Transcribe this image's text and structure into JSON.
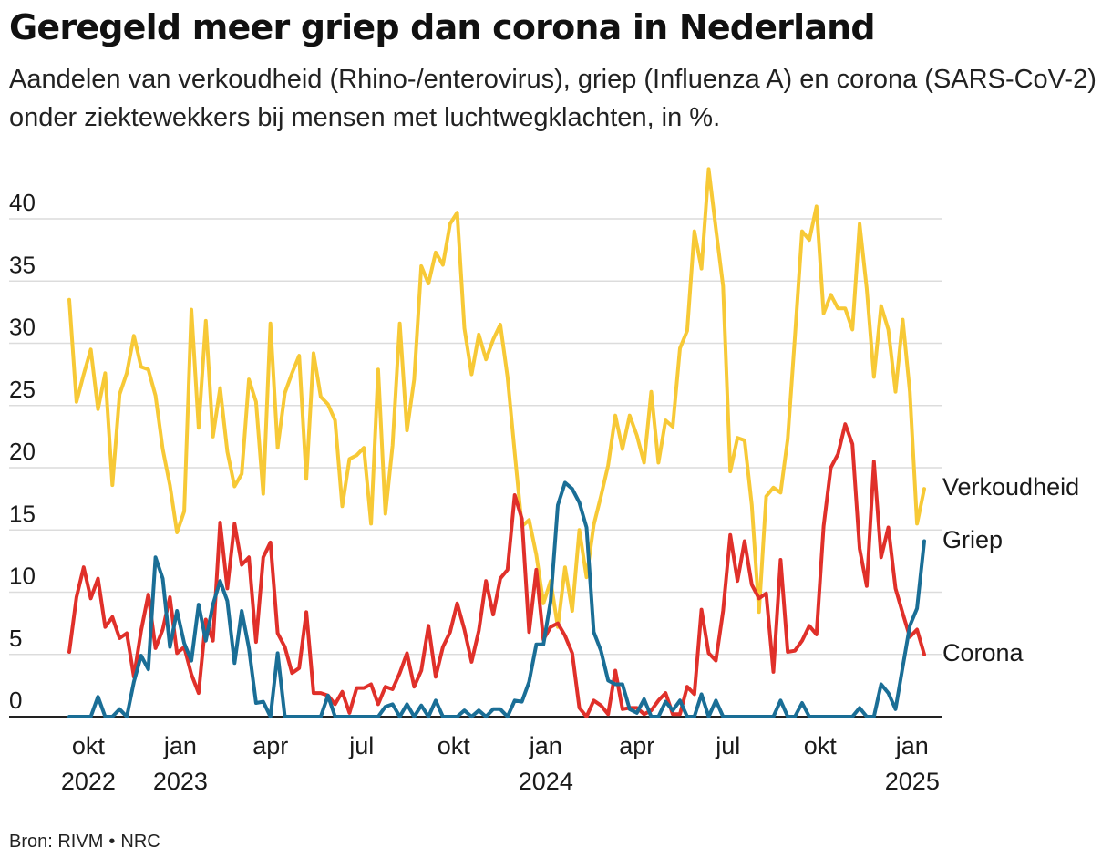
{
  "title": "Geregeld meer griep dan corona in Nederland",
  "subtitle": "Aandelen van verkoudheid (Rhino-/enterovirus), griep (Influenza A) en corona (SARS-CoV-2) onder ziektewekkers bij mensen met luchtwegklachten, in %.",
  "source": {
    "label": "Bron: RIVM",
    "brand": "NRC"
  },
  "chart_data": {
    "type": "line",
    "x_unit": "week",
    "x_start": "2022-09-12",
    "x_end": "2025-01-13",
    "ylim": [
      0,
      44
    ],
    "yticks": [
      0,
      5,
      10,
      15,
      20,
      25,
      30,
      35,
      40
    ],
    "grid": true,
    "legend": "direct labels at line ends (right)",
    "xticks": [
      {
        "date": "2022-10-01",
        "month": "okt",
        "year": "2022"
      },
      {
        "date": "2023-01-01",
        "month": "jan",
        "year": "2023"
      },
      {
        "date": "2023-04-01",
        "month": "apr",
        "year": ""
      },
      {
        "date": "2023-07-01",
        "month": "jul",
        "year": ""
      },
      {
        "date": "2023-10-01",
        "month": "okt",
        "year": ""
      },
      {
        "date": "2024-01-01",
        "month": "jan",
        "year": "2024"
      },
      {
        "date": "2024-04-01",
        "month": "apr",
        "year": ""
      },
      {
        "date": "2024-07-01",
        "month": "jul",
        "year": ""
      },
      {
        "date": "2024-10-01",
        "month": "okt",
        "year": ""
      },
      {
        "date": "2025-01-01",
        "month": "jan",
        "year": "2025"
      }
    ],
    "series": [
      {
        "name": "Verkoudheid",
        "color": "#f7c936",
        "values": [
          33.5,
          25.3,
          27.5,
          29.5,
          24.7,
          27.6,
          18.6,
          25.9,
          27.6,
          30.6,
          28.1,
          27.9,
          25.8,
          21.5,
          18.6,
          14.8,
          16.5,
          32.7,
          23.2,
          31.8,
          22.5,
          26.4,
          21.3,
          18.5,
          19.5,
          27.1,
          25.3,
          17.9,
          31.6,
          21.6,
          26.0,
          27.6,
          29.0,
          19.1,
          29.2,
          25.7,
          25.1,
          23.8,
          16.9,
          20.7,
          21.0,
          21.6,
          15.5,
          27.9,
          16.3,
          21.8,
          31.6,
          23.0,
          27.1,
          36.2,
          34.8,
          37.3,
          36.3,
          39.6,
          40.5,
          31.2,
          27.5,
          30.7,
          28.7,
          30.3,
          31.5,
          27.3,
          21.2,
          15.3,
          15.8,
          13.0,
          9.1,
          10.9,
          7.2,
          12.0,
          8.5,
          15.0,
          11.2,
          15.4,
          17.7,
          20.2,
          24.2,
          21.5,
          24.2,
          22.6,
          20.4,
          26.1,
          20.4,
          23.8,
          23.3,
          29.6,
          31.0,
          39.0,
          36.0,
          44.0,
          39.2,
          34.6,
          19.7,
          22.4,
          22.2,
          17.0,
          8.4,
          17.7,
          18.4,
          18.0,
          22.3,
          30.5,
          39.0,
          38.3,
          41.0,
          32.4,
          33.9,
          32.8,
          32.8,
          31.1,
          39.6,
          34.4,
          27.3,
          33.0,
          31.1,
          26.1,
          31.9,
          26.1,
          15.5,
          18.3
        ]
      },
      {
        "name": "Griep",
        "color": "#1a6e96",
        "values": [
          0,
          0,
          0,
          0,
          1.6,
          0,
          0,
          0.6,
          0,
          2.8,
          4.9,
          3.8,
          12.8,
          11.1,
          5.6,
          8.5,
          5.9,
          4.5,
          9.0,
          6.1,
          9.0,
          10.9,
          9.3,
          4.3,
          8.5,
          5.5,
          1.1,
          1.2,
          0,
          5.1,
          0,
          0,
          0,
          0,
          0,
          0,
          1.7,
          0,
          0,
          0,
          0,
          0,
          0,
          0,
          0.8,
          1.0,
          0,
          1.0,
          0,
          0.9,
          0,
          1.3,
          0,
          0,
          0,
          0.5,
          0,
          0.5,
          0,
          0.6,
          0.6,
          0,
          1.3,
          1.2,
          2.8,
          5.8,
          5.8,
          9.3,
          17.0,
          18.8,
          18.3,
          17.2,
          15.2,
          6.8,
          5.3,
          2.9,
          2.6,
          2.6,
          0.6,
          0.3,
          1.4,
          0,
          0,
          1.2,
          0.5,
          1.3,
          0,
          0,
          1.8,
          0,
          1.3,
          0,
          0,
          0,
          0,
          0,
          0,
          0,
          0,
          1.3,
          0,
          0,
          1.1,
          0,
          0,
          0,
          0,
          0,
          0,
          0,
          0.7,
          0,
          0,
          2.6,
          1.9,
          0.6,
          4.0,
          7.3,
          8.7,
          14.1
        ]
      },
      {
        "name": "Corona",
        "color": "#e0302a",
        "values": [
          5.2,
          9.6,
          12.0,
          9.5,
          11.1,
          7.2,
          8.0,
          6.3,
          6.7,
          3.2,
          6.9,
          9.8,
          5.5,
          7.0,
          9.6,
          5.1,
          5.6,
          3.4,
          1.9,
          7.8,
          6.1,
          15.6,
          10.3,
          15.5,
          12.2,
          12.8,
          6.0,
          12.8,
          14.0,
          6.7,
          5.6,
          3.5,
          3.9,
          8.4,
          1.9,
          1.9,
          1.7,
          1.0,
          2.0,
          0.3,
          2.3,
          2.3,
          2.6,
          1.0,
          2.4,
          2.2,
          3.5,
          5.1,
          2.4,
          3.7,
          7.3,
          3.2,
          5.6,
          6.8,
          9.1,
          7.0,
          4.4,
          6.9,
          10.9,
          8.2,
          11.1,
          11.8,
          17.8,
          15.9,
          6.8,
          11.8,
          6.2,
          7.2,
          7.5,
          6.5,
          5.1,
          0.7,
          0,
          1.3,
          0.9,
          0.2,
          3.7,
          0.6,
          0.7,
          0.7,
          0.2,
          0.5,
          1.3,
          1.9,
          0.2,
          0.2,
          2.4,
          1.8,
          8.6,
          5.1,
          4.5,
          8.5,
          14.6,
          10.9,
          14.1,
          10.6,
          9.5,
          9.9,
          3.6,
          12.6,
          5.2,
          5.3,
          6.1,
          7.3,
          6.6,
          15.3,
          20.0,
          21.1,
          23.5,
          21.9,
          13.5,
          10.5,
          20.5,
          12.8,
          15.2,
          10.3,
          8.3,
          6.4,
          7.0,
          5.0
        ]
      }
    ]
  }
}
